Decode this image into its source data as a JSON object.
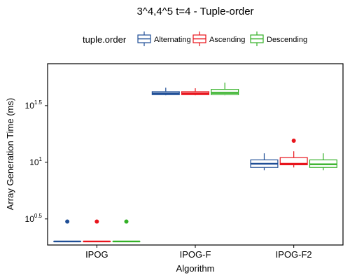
{
  "chart_data": {
    "type": "boxplot",
    "title": "3^4,4^5 t=4 - Tuple-order",
    "xlabel": "Algorithm",
    "ylabel": "Array Generation Time (ms)",
    "y_scale": "log10",
    "ylim_log10": [
      0.27,
      1.87
    ],
    "y_ticks": [
      {
        "log10": 0.5,
        "base": "10",
        "exp": "0.5"
      },
      {
        "log10": 1.0,
        "base": "10",
        "exp": "1"
      },
      {
        "log10": 1.5,
        "base": "10",
        "exp": "1.5"
      }
    ],
    "categories": [
      "IPOG",
      "IPOG-F",
      "IPOG-F2"
    ],
    "legend": {
      "title": "tuple.order",
      "position": "top",
      "entries": [
        "Alternating",
        "Ascending",
        "Descending"
      ]
    },
    "series": [
      {
        "name": "Alternating",
        "color": "#1f4e96",
        "boxes": [
          {
            "min": 2.0,
            "q1": 2.0,
            "median": 2.0,
            "q3": 2.0,
            "max": 2.0,
            "outliers": [
              3.0
            ]
          },
          {
            "min": 39.0,
            "q1": 39.5,
            "median": 40.5,
            "q3": 42.0,
            "max": 45.5,
            "outliers": []
          },
          {
            "min": 8.5,
            "q1": 9.0,
            "median": 9.7,
            "q3": 10.5,
            "max": 12.0,
            "outliers": []
          }
        ]
      },
      {
        "name": "Ascending",
        "color": "#e8141c",
        "boxes": [
          {
            "min": 2.0,
            "q1": 2.0,
            "median": 2.0,
            "q3": 2.0,
            "max": 2.0,
            "outliers": [
              3.0
            ]
          },
          {
            "min": 39.0,
            "q1": 39.5,
            "median": 40.5,
            "q3": 42.0,
            "max": 45.0,
            "outliers": []
          },
          {
            "min": 9.0,
            "q1": 9.5,
            "median": 9.7,
            "q3": 11.0,
            "max": 12.5,
            "outliers": [
              15.5
            ]
          }
        ]
      },
      {
        "name": "Descending",
        "color": "#33b026",
        "boxes": [
          {
            "min": 2.0,
            "q1": 2.0,
            "median": 2.0,
            "q3": 2.0,
            "max": 2.0,
            "outliers": [
              3.0
            ]
          },
          {
            "min": 39.0,
            "q1": 39.5,
            "median": 41.0,
            "q3": 44.0,
            "max": 50.5,
            "outliers": []
          },
          {
            "min": 8.5,
            "q1": 9.0,
            "median": 9.6,
            "q3": 10.5,
            "max": 12.0,
            "outliers": []
          }
        ]
      }
    ]
  }
}
